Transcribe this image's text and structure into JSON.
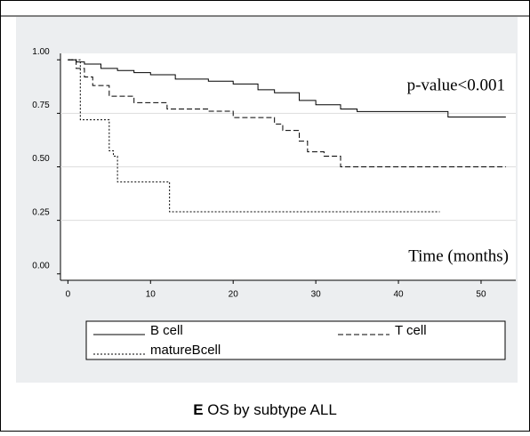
{
  "chart_data": {
    "type": "step",
    "caption_letter": "E",
    "caption": "OS by subtype ALL",
    "annotations": [
      "p-value<0.001",
      "Time (months)"
    ],
    "xlim": [
      -0.9,
      54.2
    ],
    "xticks": [
      0,
      10,
      20,
      30,
      40,
      50
    ],
    "ylim": [
      -0.03,
      1.03
    ],
    "yticks": [
      {
        "value": 1,
        "label": "1.00"
      },
      {
        "value": 0.75,
        "label": "0.75"
      },
      {
        "value": 0.5,
        "label": "0.50"
      },
      {
        "value": 0.25,
        "label": "0.25"
      },
      {
        "value": 0,
        "label": "0.00"
      }
    ],
    "grid": true,
    "series": [
      {
        "name": "B cell",
        "color": "#000000",
        "style": "solid",
        "x": [
          0,
          1,
          2,
          4,
          6,
          8,
          10,
          13,
          17,
          20,
          23,
          25,
          28,
          30,
          33,
          35,
          46,
          53
        ],
        "values": [
          1,
          0.99,
          0.98,
          0.96,
          0.95,
          0.94,
          0.93,
          0.91,
          0.9,
          0.887,
          0.86,
          0.846,
          0.81,
          0.79,
          0.77,
          0.758,
          0.733,
          0.733
        ]
      },
      {
        "name": "T cell",
        "color": "#000000",
        "style": "dashed",
        "x": [
          0,
          1,
          2,
          3,
          5,
          8,
          12,
          17,
          20,
          25,
          26,
          28,
          29,
          31,
          33,
          53
        ],
        "values": [
          1,
          0.96,
          0.92,
          0.88,
          0.83,
          0.8,
          0.77,
          0.76,
          0.73,
          0.7,
          0.67,
          0.62,
          0.57,
          0.55,
          0.5,
          0.5
        ]
      },
      {
        "name": "matureBcell",
        "color": "#000000",
        "style": "dotted",
        "x": [
          0,
          1.5,
          5,
          5.5,
          6,
          12.3,
          45
        ],
        "values": [
          1,
          0.72,
          0.575,
          0.55,
          0.43,
          0.29,
          0.29
        ]
      }
    ]
  }
}
